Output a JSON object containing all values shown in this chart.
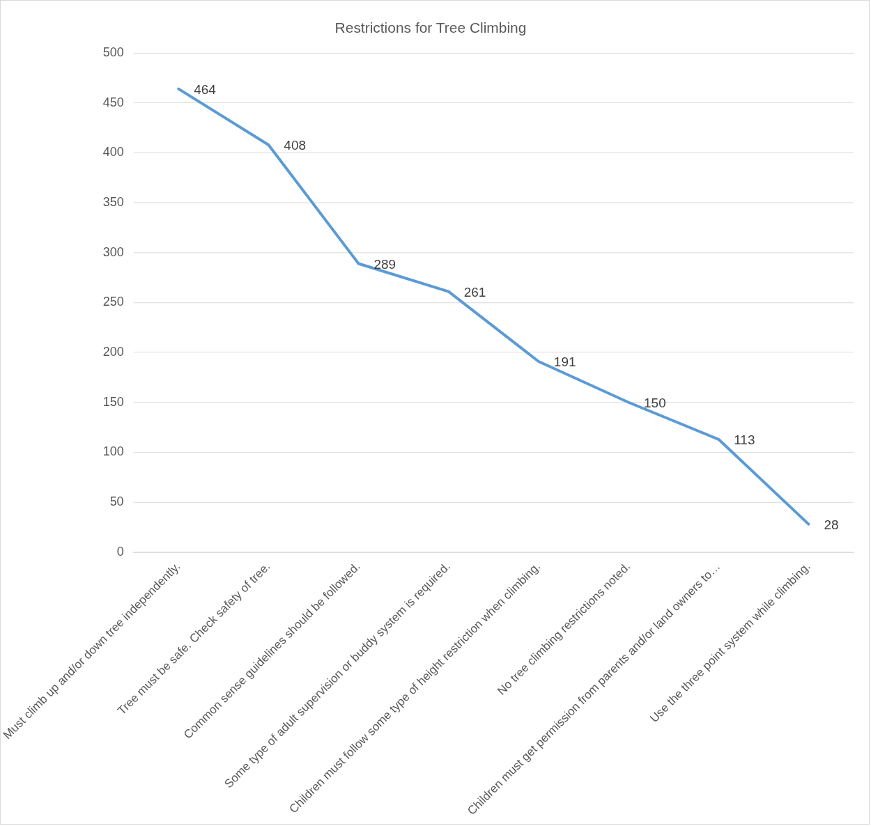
{
  "chart_data": {
    "type": "line",
    "title": "Restrictions for Tree Climbing",
    "categories": [
      "Must climb up and/or down tree independently.",
      "Tree must be safe. Check safety of tree.",
      "Common sense guidelines should be followed.",
      "Some type of adult supervision or buddy system is required.",
      "Children must follow some type of height restriction when climbing.",
      "No tree climbing restrictions noted.",
      "Children must get permission from parents and/or land owners to…",
      "Use the three point system while climbing."
    ],
    "values": [
      464,
      408,
      289,
      261,
      191,
      150,
      113,
      28
    ],
    "color": "#5b9bd5",
    "ylim": [
      0,
      500
    ],
    "yticks": [
      0,
      50,
      100,
      150,
      200,
      250,
      300,
      350,
      400,
      450,
      500
    ],
    "grid": "y",
    "legend": false,
    "marker": "none",
    "line_style": "solid",
    "data_labels": true
  }
}
